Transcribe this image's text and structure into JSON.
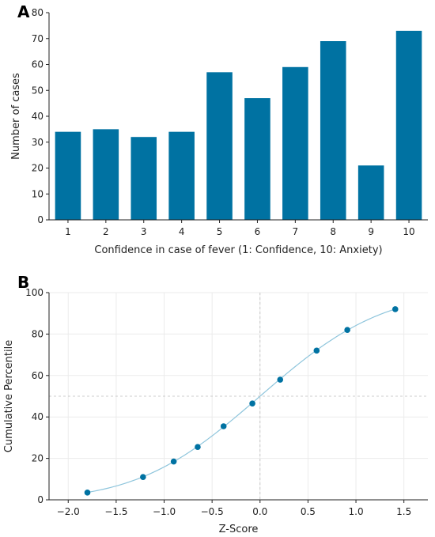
{
  "chart_data": [
    {
      "panel": "A",
      "type": "bar",
      "categories": [
        "1",
        "2",
        "3",
        "4",
        "5",
        "6",
        "7",
        "8",
        "9",
        "10"
      ],
      "values": [
        34,
        35,
        32,
        34,
        57,
        47,
        59,
        69,
        21,
        73
      ],
      "xlabel": "Confidence in case of fever (1: Confidence, 10: Anxiety)",
      "ylabel": "Number of cases",
      "ylim": [
        0,
        80
      ],
      "yticks": [
        "0",
        "10",
        "20",
        "30",
        "40",
        "50",
        "60",
        "70",
        "80"
      ],
      "grid": false,
      "bar_color": "#0072a2"
    },
    {
      "panel": "B",
      "type": "scatter",
      "x": [
        -1.8,
        -1.22,
        -0.9,
        -0.65,
        -0.38,
        -0.08,
        0.21,
        0.59,
        0.91,
        1.41
      ],
      "y": [
        3.5,
        11,
        18.5,
        25.5,
        35.5,
        46.5,
        58,
        72,
        82,
        92
      ],
      "xlabel": "Z-Score",
      "ylabel": "Cumulative Percentile",
      "xlim": [
        -2.2,
        1.75
      ],
      "ylim": [
        0,
        100
      ],
      "xticks": [
        "−2.0",
        "−1.5",
        "−1.0",
        "−0.5",
        "0.0",
        "0.5",
        "1.0",
        "1.5"
      ],
      "yticks": [
        "0",
        "20",
        "40",
        "60",
        "80",
        "100"
      ],
      "grid": true,
      "reference_lines": {
        "x": 0,
        "y": 50
      },
      "fit_curve": "normal-cdf",
      "point_color": "#0072a2",
      "curve_color": "#8ec5dc"
    }
  ]
}
